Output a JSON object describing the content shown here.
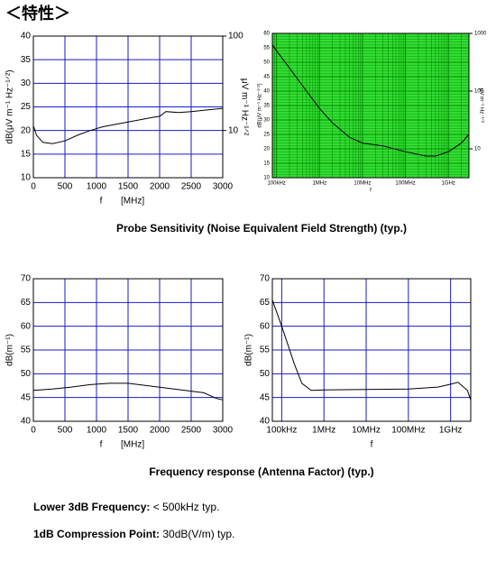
{
  "header": {
    "title": "＜特性＞"
  },
  "chart_data": [
    {
      "type": "line",
      "ylabel": "dB(μV m⁻¹ Hz⁻¹ᐟ²)",
      "xlabel": "f",
      "xunit": "[MHz]",
      "xlim": [
        0,
        3000
      ],
      "xticks": [
        0,
        500,
        1000,
        1500,
        2000,
        2500,
        3000
      ],
      "ylim": [
        10,
        40
      ],
      "yticks": [
        10,
        15,
        20,
        25,
        30,
        35,
        40
      ],
      "y2label": "μV m⁻¹ Hz⁻¹ᐟ²",
      "y2lim": [
        3.162,
        100
      ],
      "y2ticks": [
        10,
        100
      ],
      "y2log": true,
      "grid": true,
      "grid_color": "#1a1acc",
      "background": "#ffffff",
      "color": "#000000",
      "x": [
        0,
        50,
        150,
        300,
        500,
        700,
        900,
        1100,
        1300,
        1500,
        1700,
        1900,
        2000,
        2100,
        2300,
        2500,
        2700,
        3000
      ],
      "values": [
        21,
        19,
        17.5,
        17.2,
        17.8,
        19,
        20,
        20.8,
        21.3,
        21.8,
        22.3,
        22.8,
        23,
        24,
        23.8,
        24,
        24.3,
        24.7
      ]
    },
    {
      "type": "line",
      "ylabel": "dB(μV m⁻¹ Hz⁻¹ᐟ²)",
      "xlabel": "f",
      "xlog": true,
      "xlim": [
        80000,
        3000000000
      ],
      "xticks": [
        {
          "value": 100000,
          "label": "100kHz"
        },
        {
          "value": 1000000,
          "label": "1MHz"
        },
        {
          "value": 10000000,
          "label": "10MHz"
        },
        {
          "value": 100000000,
          "label": "100MHz"
        },
        {
          "value": 1000000000,
          "label": "1GHz"
        }
      ],
      "ylim": [
        10,
        60
      ],
      "yticks": [
        10,
        15,
        20,
        25,
        30,
        35,
        40,
        45,
        50,
        55,
        60
      ],
      "y2label": "μV m⁻¹ Hz⁻¹ᐟ²",
      "y2lim": [
        3.162,
        1000
      ],
      "y2ticks": [
        10,
        100,
        1000
      ],
      "y2log": true,
      "grid": true,
      "minor_grid": true,
      "grid_color": "#008800",
      "background": "#33dd33",
      "color": "#000000",
      "x": [
        80000,
        100000,
        200000,
        500000,
        1000000,
        2000000,
        5000000,
        10000000,
        30000000,
        100000000,
        300000000,
        500000000,
        1000000000,
        2000000000,
        3000000000
      ],
      "values": [
        56,
        54,
        48,
        40,
        34,
        29,
        24,
        22,
        21,
        19,
        17.5,
        17.5,
        19,
        22,
        25
      ]
    },
    {
      "type": "line",
      "ylabel": "dB(m⁻¹)",
      "xlabel": "f",
      "xunit": "[MHz]",
      "xlim": [
        0,
        3000
      ],
      "xticks": [
        0,
        500,
        1000,
        1500,
        2000,
        2500,
        3000
      ],
      "ylim": [
        40,
        70
      ],
      "yticks": [
        40,
        45,
        50,
        55,
        60,
        65,
        70
      ],
      "grid": true,
      "grid_color": "#1a1acc",
      "background": "#ffffff",
      "color": "#000000",
      "x": [
        0,
        300,
        600,
        900,
        1200,
        1500,
        1800,
        2100,
        2400,
        2700,
        2900,
        3000
      ],
      "values": [
        46.5,
        46.8,
        47.2,
        47.7,
        48,
        48,
        47.5,
        47,
        46.5,
        46,
        44.8,
        44.5
      ]
    },
    {
      "type": "line",
      "ylabel": "dB(m⁻¹)",
      "xlabel": "f",
      "xlog": true,
      "xlim": [
        60000,
        3000000000
      ],
      "xticks": [
        {
          "value": 100000,
          "label": "100kHz"
        },
        {
          "value": 1000000,
          "label": "1MHz"
        },
        {
          "value": 10000000,
          "label": "10MHz"
        },
        {
          "value": 100000000,
          "label": "100MHz"
        },
        {
          "value": 1000000000,
          "label": "1GHz"
        }
      ],
      "ylim": [
        40,
        70
      ],
      "yticks": [
        40,
        45,
        50,
        55,
        60,
        65,
        70
      ],
      "grid": true,
      "grid_color": "#1a1acc",
      "background": "#ffffff",
      "color": "#000000",
      "x": [
        60000,
        100000,
        200000,
        300000,
        500000,
        1000000,
        10000000,
        100000000,
        500000000,
        1000000000,
        1500000000,
        2500000000,
        3000000000
      ],
      "values": [
        65.5,
        60,
        52,
        48,
        46.5,
        46.6,
        46.7,
        46.8,
        47.2,
        47.8,
        48.2,
        46.5,
        44.5
      ]
    }
  ],
  "captions": [
    "Probe Sensitivity (Noise Equivalent Field Strength) (typ.)",
    "Frequency response (Antenna Factor) (typ.)"
  ],
  "specs": [
    {
      "label": "Lower 3dB Frequency:",
      "value": "< 500kHz typ."
    },
    {
      "label": "1dB Compression Point:",
      "value": "30dB(V/m) typ."
    }
  ]
}
